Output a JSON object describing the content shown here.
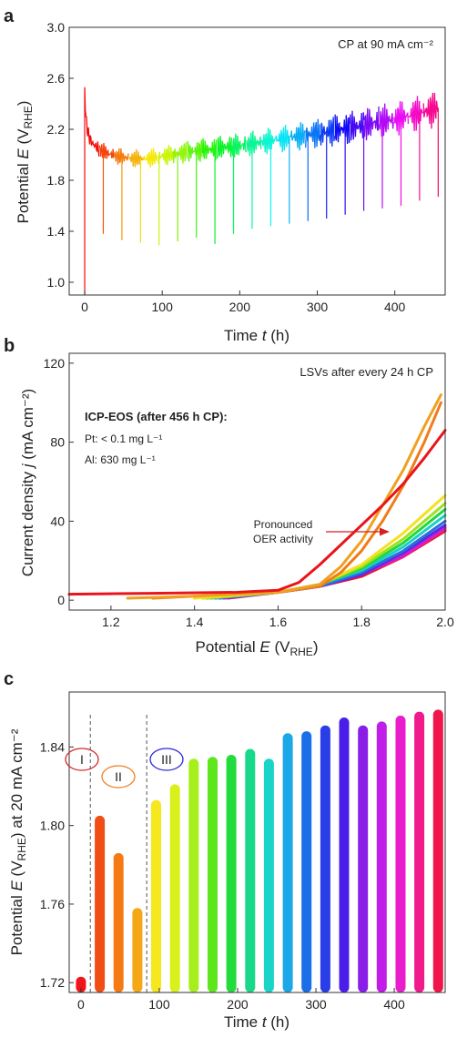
{
  "chart_data": [
    {
      "panel": "a",
      "type": "line",
      "annotation": "CP at 90 mA cm⁻²",
      "xlabel_main": "Time ",
      "xlabel_sym": "t",
      "xlabel_unit": " (h)",
      "ylabel_main": "Potential ",
      "ylabel_sym": "E",
      "ylabel_unit": " (V",
      "ylabel_sub": "RHE",
      "ylabel_end": ")",
      "xlim": [
        -20,
        465
      ],
      "ylim": [
        0.9,
        3.0
      ],
      "xticks": [
        0,
        100,
        200,
        300,
        400
      ],
      "xtick_labels": [
        "0",
        "100",
        "200",
        "300",
        "400"
      ],
      "yticks": [
        1.0,
        1.4,
        1.8,
        2.2,
        2.6,
        3.0
      ],
      "ytick_labels": [
        "1.0",
        "1.4",
        "1.8",
        "2.2",
        "2.6",
        "3.0"
      ],
      "trend": {
        "x": [
          0,
          2,
          5,
          10,
          15,
          20,
          30,
          40,
          50,
          60,
          70,
          80,
          90,
          100,
          120,
          140,
          160,
          180,
          200,
          220,
          240,
          260,
          280,
          300,
          320,
          340,
          360,
          380,
          400,
          420,
          440,
          456
        ],
        "y": [
          2.5,
          2.25,
          2.15,
          2.09,
          2.06,
          2.04,
          2.01,
          1.99,
          1.98,
          1.97,
          1.97,
          1.97,
          1.98,
          1.99,
          2.01,
          2.03,
          2.04,
          2.06,
          2.07,
          2.09,
          2.11,
          2.13,
          2.15,
          2.17,
          2.19,
          2.21,
          2.23,
          2.26,
          2.28,
          2.31,
          2.34,
          2.37
        ]
      },
      "dips": {
        "x": [
          0,
          24,
          48,
          72,
          96,
          120,
          144,
          168,
          192,
          216,
          240,
          264,
          288,
          312,
          336,
          360,
          384,
          408,
          432,
          456
        ],
        "y": [
          0.9,
          1.38,
          1.33,
          1.31,
          1.29,
          1.32,
          1.35,
          1.3,
          1.38,
          1.42,
          1.44,
          1.46,
          1.48,
          1.5,
          1.53,
          1.56,
          1.58,
          1.6,
          1.64,
          1.67
        ]
      }
    },
    {
      "panel": "b",
      "type": "line",
      "annotation": "LSVs after every 24 h CP",
      "icp_title": "ICP-EOS (after 456 h CP):",
      "icp_pt": "Pt: < 0.1 mg L⁻¹",
      "icp_al": "Al: 630 mg L⁻¹",
      "oer_line1": "Pronounced",
      "oer_line2": "OER activity",
      "xlabel_main": "Potential ",
      "xlabel_sym": "E",
      "xlabel_unit": " (V",
      "xlabel_sub": "RHE",
      "xlabel_end": ")",
      "ylabel_main": "Current density ",
      "ylabel_sym": "j",
      "ylabel_unit": " (mA cm⁻²)",
      "xlim": [
        1.1,
        2.0
      ],
      "ylim": [
        -5,
        125
      ],
      "xticks": [
        1.2,
        1.4,
        1.6,
        1.8,
        2.0
      ],
      "xtick_labels": [
        "1.2",
        "1.4",
        "1.6",
        "1.8",
        "2.0"
      ],
      "yticks": [
        0,
        40,
        80,
        120
      ],
      "ytick_labels": [
        "0",
        "40",
        "80",
        "120"
      ],
      "series": [
        {
          "color": "#e8151b",
          "x": [
            1.1,
            1.3,
            1.5,
            1.6,
            1.65,
            1.7,
            1.75,
            1.8,
            1.85,
            1.9,
            1.95,
            2.0
          ],
          "y": [
            3,
            3.5,
            4,
            5,
            9,
            18,
            28,
            38,
            48,
            59,
            72,
            86
          ]
        },
        {
          "color": "#f0a020",
          "x": [
            1.24,
            1.4,
            1.6,
            1.7,
            1.75,
            1.8,
            1.85,
            1.9,
            1.95,
            1.99
          ],
          "y": [
            1,
            2,
            4,
            8,
            17,
            30,
            48,
            66,
            88,
            104
          ]
        },
        {
          "color": "#f07c1a",
          "x": [
            1.3,
            1.4,
            1.6,
            1.7,
            1.75,
            1.8,
            1.85,
            1.9,
            1.95,
            1.99
          ],
          "y": [
            1,
            2,
            4,
            7,
            14,
            25,
            40,
            58,
            80,
            100
          ]
        },
        {
          "color": "#f5e020",
          "x": [
            1.4,
            1.6,
            1.7,
            1.8,
            1.9,
            2.0
          ],
          "y": [
            1,
            4,
            8,
            18,
            34,
            53
          ]
        },
        {
          "color": "#9be31e",
          "x": [
            1.42,
            1.6,
            1.7,
            1.8,
            1.9,
            2.0
          ],
          "y": [
            1,
            4,
            8,
            17,
            31,
            49
          ]
        },
        {
          "color": "#22d640",
          "x": [
            1.43,
            1.6,
            1.7,
            1.8,
            1.9,
            2.0
          ],
          "y": [
            1,
            4,
            8,
            16,
            29,
            46
          ]
        },
        {
          "color": "#1ad0c4",
          "x": [
            1.44,
            1.6,
            1.7,
            1.8,
            1.9,
            2.0
          ],
          "y": [
            1,
            4,
            8,
            15,
            27,
            43
          ]
        },
        {
          "color": "#2a6fe0",
          "x": [
            1.45,
            1.6,
            1.7,
            1.8,
            1.9,
            2.0
          ],
          "y": [
            1,
            4,
            7,
            14,
            25,
            40
          ]
        },
        {
          "color": "#5a2be0",
          "x": [
            1.46,
            1.6,
            1.7,
            1.8,
            1.9,
            2.0
          ],
          "y": [
            1,
            4,
            7,
            13,
            24,
            38
          ]
        },
        {
          "color": "#c21ee0",
          "x": [
            1.47,
            1.6,
            1.7,
            1.8,
            1.9,
            2.0
          ],
          "y": [
            1,
            4,
            7,
            13,
            23,
            37
          ]
        },
        {
          "color": "#f01a8c",
          "x": [
            1.47,
            1.6,
            1.7,
            1.8,
            1.9,
            2.0
          ],
          "y": [
            1,
            4,
            7,
            13,
            22,
            36
          ]
        },
        {
          "color": "#e01535",
          "x": [
            1.48,
            1.6,
            1.7,
            1.8,
            1.9,
            2.0
          ],
          "y": [
            1,
            4,
            7,
            12,
            22,
            35
          ]
        }
      ]
    },
    {
      "panel": "c",
      "type": "bar",
      "xlabel_main": "Time ",
      "xlabel_sym": "t",
      "xlabel_unit": " (h)",
      "ylabel_main": "Potential ",
      "ylabel_sym": "E",
      "ylabel_unit": " (V",
      "ylabel_sub": "RHE",
      "ylabel_end": ") at 20 mA cm⁻²",
      "xlim": [
        -15,
        465
      ],
      "ylim": [
        1.715,
        1.868
      ],
      "xticks": [
        0,
        100,
        200,
        300,
        400
      ],
      "xtick_labels": [
        "0",
        "100",
        "200",
        "300",
        "400"
      ],
      "yticks": [
        1.72,
        1.76,
        1.8,
        1.84
      ],
      "ytick_labels": [
        "1.72",
        "1.76",
        "1.80",
        "1.84"
      ],
      "regions": [
        "I",
        "II",
        "III"
      ],
      "dividers": [
        12,
        84
      ],
      "x": [
        0,
        24,
        48,
        72,
        96,
        120,
        144,
        168,
        192,
        216,
        240,
        264,
        288,
        312,
        336,
        360,
        384,
        408,
        432,
        456
      ],
      "values": [
        1.723,
        1.805,
        1.786,
        1.758,
        1.813,
        1.821,
        1.834,
        1.835,
        1.836,
        1.839,
        1.834,
        1.847,
        1.848,
        1.851,
        1.855,
        1.851,
        1.853,
        1.856,
        1.858,
        1.859
      ]
    }
  ],
  "colors": {
    "axis": "#333333",
    "annotation_red": "#d42020",
    "oval_I": "#d42a2a",
    "oval_II": "#f08020",
    "oval_III": "#2a2ad4",
    "bars": [
      "#f0151b",
      "#f04e14",
      "#f57a14",
      "#f5a716",
      "#f5e81c",
      "#d8f01c",
      "#a6ef1c",
      "#5de61c",
      "#22dc3c",
      "#1ad88a",
      "#1ad4c8",
      "#1aa8e8",
      "#1a6ee8",
      "#2a3ee8",
      "#4a1ee8",
      "#8a1ee8",
      "#c01ee8",
      "#e81ecc",
      "#f01a8c",
      "#f0154a"
    ]
  }
}
